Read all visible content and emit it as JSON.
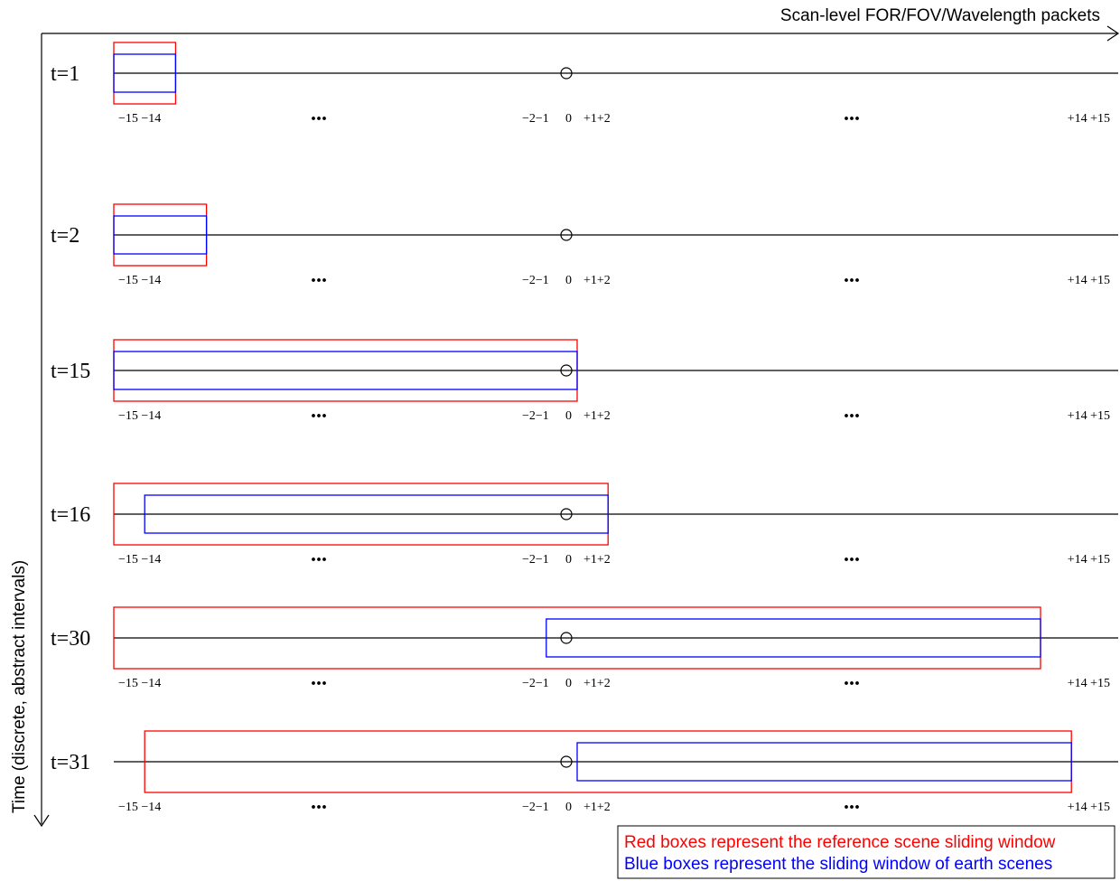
{
  "header": {
    "x_axis_label": "Scan-level FOR/FOV/Wavelength packets",
    "y_axis_label": "Time (discrete, abstract intervals)"
  },
  "ticks": {
    "left": "−15 −14",
    "center_left": "−2−1",
    "zero": "0",
    "center_right": "+1+2",
    "right": "+14 +15",
    "ellipsis": "..."
  },
  "rows": [
    {
      "label": "t=1",
      "red_window": [
        -15,
        -14
      ],
      "blue_window": [
        -15,
        -14
      ]
    },
    {
      "label": "t=2",
      "red_window": [
        -15,
        -13
      ],
      "blue_window": [
        -15,
        -13
      ]
    },
    {
      "label": "t=15",
      "red_window": [
        -15,
        -1
      ],
      "blue_window": [
        -15,
        -1
      ]
    },
    {
      "label": "t=16",
      "red_window": [
        -15,
        0
      ],
      "blue_window": [
        -14,
        0
      ]
    },
    {
      "label": "t=30",
      "red_window": [
        -15,
        14
      ],
      "blue_window": [
        -1,
        14
      ]
    },
    {
      "label": "t=31",
      "red_window": [
        -14,
        15
      ],
      "blue_window": [
        0,
        15
      ]
    }
  ],
  "legend": {
    "red_text": "Red boxes represent the reference scene sliding window",
    "blue_text": "Blue boxes represent the sliding window of earth scenes"
  },
  "colors": {
    "reference_window": "#ff0000",
    "earth_window": "#0000ff",
    "axis": "#000000"
  }
}
